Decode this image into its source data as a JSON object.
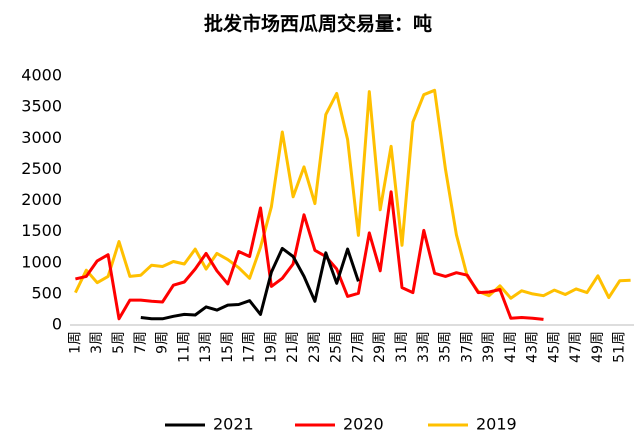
{
  "chart_data": {
    "type": "line",
    "title": "批发市场西瓜周交易量：吨",
    "categories": [
      "1周",
      null,
      "3周",
      null,
      "5周",
      null,
      "7周",
      null,
      "9周",
      null,
      "11周",
      null,
      "13周",
      null,
      "15周",
      null,
      "17周",
      null,
      "19周",
      null,
      "21周",
      null,
      "23周",
      null,
      "25周",
      null,
      "27周",
      null,
      "29周",
      null,
      "31周",
      null,
      "33周",
      null,
      "35周",
      null,
      "37周",
      null,
      "39周",
      null,
      "41周",
      null,
      "43周",
      null,
      "45周",
      null,
      "47周",
      null,
      "49周",
      null,
      "51周",
      null
    ],
    "series": [
      {
        "name": "2021",
        "color": "#000000",
        "values": [
          null,
          null,
          null,
          null,
          null,
          null,
          120,
          100,
          100,
          140,
          170,
          160,
          290,
          240,
          320,
          330,
          390,
          170,
          850,
          1230,
          1100,
          780,
          380,
          1160,
          670,
          1220,
          700,
          null,
          null,
          null,
          null,
          null,
          null,
          null,
          null,
          null,
          null,
          null,
          null,
          null,
          null,
          null,
          null,
          null,
          null,
          null,
          null,
          null,
          null,
          null,
          null,
          null
        ]
      },
      {
        "name": "2020",
        "color": "#ff0000",
        "values": [
          740,
          780,
          1030,
          1130,
          100,
          400,
          400,
          380,
          370,
          640,
          690,
          900,
          1150,
          870,
          660,
          1180,
          1100,
          1880,
          620,
          750,
          980,
          1770,
          1200,
          1100,
          900,
          460,
          510,
          1480,
          870,
          2140,
          600,
          520,
          1520,
          830,
          780,
          840,
          800,
          520,
          530,
          570,
          110,
          120,
          110,
          90,
          null,
          null,
          null,
          null,
          null,
          null,
          null,
          null
        ]
      },
      {
        "name": "2019",
        "color": "#ffc000",
        "values": [
          520,
          880,
          680,
          780,
          1340,
          780,
          800,
          960,
          940,
          1020,
          980,
          1220,
          900,
          1150,
          1050,
          920,
          750,
          1250,
          1900,
          3100,
          2060,
          2540,
          1950,
          3380,
          3720,
          2980,
          1440,
          3750,
          1850,
          2870,
          1280,
          3260,
          3700,
          3770,
          2500,
          1450,
          780,
          540,
          470,
          630,
          430,
          550,
          500,
          470,
          560,
          490,
          580,
          520,
          790,
          440,
          710,
          720
        ]
      }
    ],
    "ylim": [
      0,
      4000
    ],
    "yticks": [
      0,
      500,
      1000,
      1500,
      2000,
      2500,
      3000,
      3500,
      4000
    ],
    "grid": false,
    "legend": "bottom"
  }
}
